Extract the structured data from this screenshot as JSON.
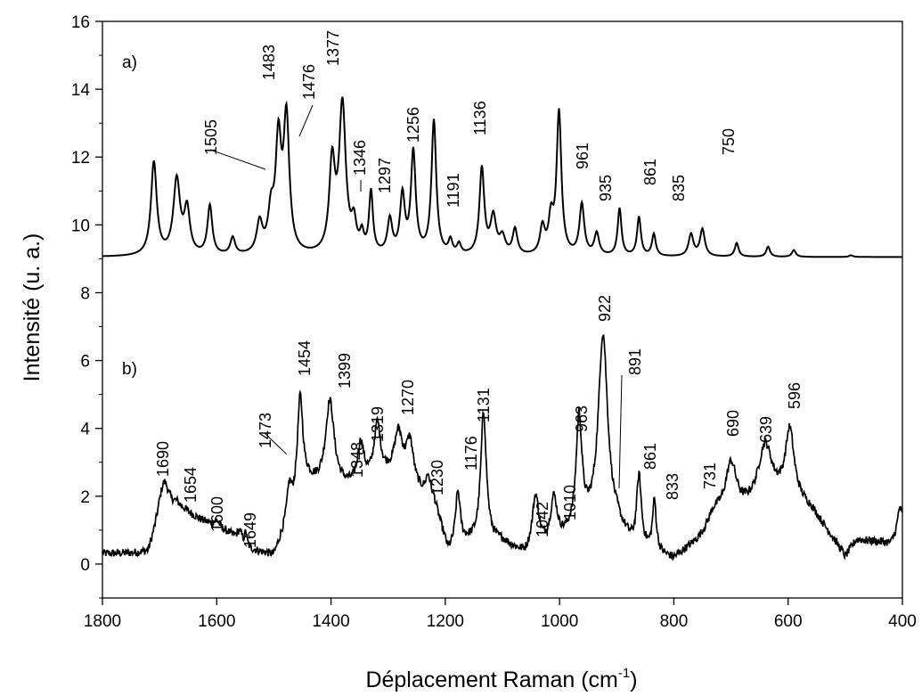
{
  "chart_data": {
    "type": "line",
    "xlabel": "Déplacement Raman (cm",
    "xlabel_sup": "-1",
    "xlabel_close": ")",
    "ylabel": "Intensité (u. a.)",
    "xlim": [
      1800,
      400
    ],
    "ylim": [
      -1,
      16
    ],
    "x_reversed": true,
    "x_ticks": [
      1800,
      1600,
      1400,
      1200,
      1000,
      800,
      600,
      400
    ],
    "y_ticks": [
      0,
      2,
      4,
      6,
      8,
      10,
      12,
      14,
      16
    ],
    "grid": false,
    "series": [
      {
        "panel": "a)",
        "baseline": 9.05,
        "peaks": [
          [
            1710,
            2.75,
            6
          ],
          [
            1670,
            2.2,
            7
          ],
          [
            1652,
            1.3,
            6
          ],
          [
            1612,
            1.45,
            5
          ],
          [
            1572,
            0.5,
            5
          ],
          [
            1525,
            0.9,
            6
          ],
          [
            1505,
            1.1,
            6
          ],
          [
            1492,
            3.2,
            6
          ],
          [
            1478,
            3.9,
            6
          ],
          [
            1398,
            2.6,
            6
          ],
          [
            1380,
            4.35,
            7
          ],
          [
            1360,
            0.8,
            5
          ],
          [
            1346,
            0.5,
            4
          ],
          [
            1330,
            1.8,
            4
          ],
          [
            1297,
            1.0,
            5
          ],
          [
            1275,
            1.7,
            5
          ],
          [
            1256,
            3.0,
            5
          ],
          [
            1220,
            3.95,
            5
          ],
          [
            1191,
            0.4,
            4
          ],
          [
            1176,
            0.3,
            4
          ],
          [
            1136,
            2.55,
            5
          ],
          [
            1116,
            1.1,
            6
          ],
          [
            1100,
            0.5,
            6
          ],
          [
            1078,
            0.75,
            5
          ],
          [
            1030,
            0.8,
            5
          ],
          [
            1015,
            1.0,
            5
          ],
          [
            1001,
            4.2,
            5
          ],
          [
            961,
            1.5,
            5
          ],
          [
            935,
            0.65,
            5
          ],
          [
            895,
            1.4,
            4
          ],
          [
            861,
            1.15,
            4
          ],
          [
            835,
            0.65,
            4
          ],
          [
            770,
            0.65,
            5
          ],
          [
            750,
            0.8,
            5
          ],
          [
            690,
            0.4,
            4
          ],
          [
            635,
            0.3,
            4
          ],
          [
            590,
            0.2,
            4
          ],
          [
            490,
            0.05,
            4
          ]
        ],
        "labels": [
          {
            "x": 1505,
            "text": "1505"
          },
          {
            "x": 1483,
            "text": "1483"
          },
          {
            "x": 1476,
            "text": "1476"
          },
          {
            "x": 1377,
            "text": "1377"
          },
          {
            "x": 1346,
            "text": "1346"
          },
          {
            "x": 1297,
            "text": "1297"
          },
          {
            "x": 1256,
            "text": "1256"
          },
          {
            "x": 1191,
            "text": "1191"
          },
          {
            "x": 1136,
            "text": "1136"
          },
          {
            "x": 961,
            "text": "961"
          },
          {
            "x": 935,
            "text": "935"
          },
          {
            "x": 861,
            "text": "861"
          },
          {
            "x": 835,
            "text": "835"
          },
          {
            "x": 750,
            "text": "750"
          }
        ]
      },
      {
        "panel": "b)",
        "baseline_points": [
          [
            1800,
            0.3
          ],
          [
            1720,
            0.3
          ],
          [
            1700,
            1.3
          ],
          [
            1670,
            1.7
          ],
          [
            1630,
            1.3
          ],
          [
            1580,
            0.9
          ],
          [
            1540,
            0.4
          ],
          [
            1500,
            0.2
          ],
          [
            1480,
            1.0
          ],
          [
            1440,
            2.3
          ],
          [
            1360,
            2.2
          ],
          [
            1300,
            2.5
          ],
          [
            1220,
            1.8
          ],
          [
            1195,
            0.3
          ],
          [
            1160,
            0.6
          ],
          [
            1100,
            0.6
          ],
          [
            1060,
            0.2
          ],
          [
            1000,
            0.6
          ],
          [
            960,
            1.0
          ],
          [
            900,
            1.0
          ],
          [
            870,
            0.4
          ],
          [
            800,
            0.1
          ],
          [
            760,
            0.6
          ],
          [
            720,
            1.3
          ],
          [
            700,
            1.3
          ],
          [
            650,
            1.8
          ],
          [
            600,
            2.0
          ],
          [
            560,
            1.6
          ],
          [
            520,
            0.7
          ],
          [
            500,
            0.2
          ],
          [
            480,
            0.7
          ],
          [
            420,
            0.6
          ],
          [
            400,
            1.2
          ]
        ],
        "peaks": [
          [
            1692,
            1.0,
            10
          ],
          [
            1600,
            0.2,
            6
          ],
          [
            1560,
            0.3,
            5
          ],
          [
            1549,
            0.4,
            2
          ],
          [
            1473,
            0.9,
            5
          ],
          [
            1454,
            3.0,
            6
          ],
          [
            1402,
            2.5,
            9
          ],
          [
            1348,
            1.2,
            7
          ],
          [
            1319,
            1.6,
            7
          ],
          [
            1282,
            1.4,
            9
          ],
          [
            1262,
            1.3,
            8
          ],
          [
            1230,
            0.6,
            5
          ],
          [
            1178,
            1.6,
            5
          ],
          [
            1133,
            3.8,
            6
          ],
          [
            1042,
            1.6,
            7
          ],
          [
            1010,
            1.3,
            7
          ],
          [
            966,
            3.2,
            6
          ],
          [
            924,
            5.7,
            10
          ],
          [
            861,
            2.1,
            5
          ],
          [
            834,
            1.5,
            4
          ],
          [
            731,
            0.3,
            10
          ],
          [
            700,
            1.6,
            12
          ],
          [
            640,
            1.6,
            14
          ],
          [
            597,
            1.9,
            9
          ],
          [
            405,
            0.6,
            4
          ]
        ],
        "noise_amplitude": 0.12,
        "labels": [
          {
            "x": 1690,
            "text": "1690"
          },
          {
            "x": 1654,
            "text": "1654"
          },
          {
            "x": 1600,
            "text": "1600"
          },
          {
            "x": 1649,
            "text": "1649"
          },
          {
            "x": 1473,
            "text": "1473"
          },
          {
            "x": 1454,
            "text": "1454"
          },
          {
            "x": 1399,
            "text": "1399"
          },
          {
            "x": 1348,
            "text": "1348"
          },
          {
            "x": 1319,
            "text": "1319"
          },
          {
            "x": 1270,
            "text": "1270"
          },
          {
            "x": 1230,
            "text": "1230"
          },
          {
            "x": 1176,
            "text": "1176"
          },
          {
            "x": 1131,
            "text": "1131"
          },
          {
            "x": 1042,
            "text": "1042"
          },
          {
            "x": 1010,
            "text": "1010"
          },
          {
            "x": 963,
            "text": "963"
          },
          {
            "x": 922,
            "text": "922"
          },
          {
            "x": 891,
            "text": "891"
          },
          {
            "x": 861,
            "text": "861"
          },
          {
            "x": 833,
            "text": "833"
          },
          {
            "x": 731,
            "text": "731"
          },
          {
            "x": 690,
            "text": "690"
          },
          {
            "x": 639,
            "text": "639"
          },
          {
            "x": 596,
            "text": "596"
          }
        ]
      }
    ]
  }
}
